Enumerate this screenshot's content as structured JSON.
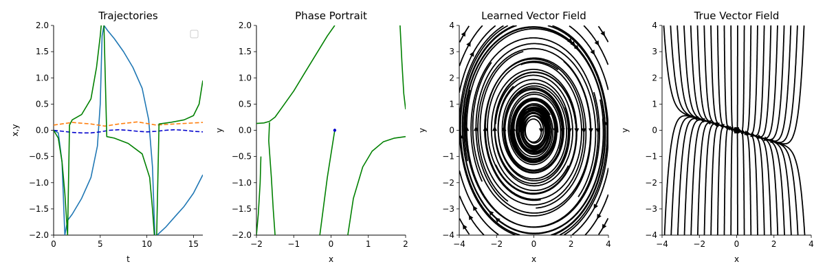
{
  "chart_data": [
    {
      "type": "line",
      "title": "Trajectories",
      "xlabel": "t",
      "ylabel": "x,y",
      "xlim": [
        0,
        16
      ],
      "ylim": [
        -2.0,
        2.0
      ],
      "xticks": [
        "0",
        "5",
        "10",
        "15"
      ],
      "yticks": [
        "−2.0",
        "−1.5",
        "−1.0",
        "−0.5",
        "0.0",
        "0.5",
        "1.0",
        "1.5",
        "2.0"
      ],
      "legend": "top-right (empty)",
      "series": [
        {
          "color": "#1f77b4",
          "style": "solid",
          "x": [
            0,
            0.5,
            0.9,
            1.2,
            1.5,
            2.0,
            3.0,
            4.0,
            4.7,
            5.0,
            5.2,
            5.4,
            5.8,
            6.5,
            7.5,
            8.5,
            9.5,
            10.2,
            10.6,
            10.85
          ],
          "y": [
            0.0,
            -0.05,
            -0.6,
            -2.0,
            -1.72,
            -1.6,
            -1.3,
            -0.9,
            -0.3,
            0.5,
            1.8,
            2.0,
            1.9,
            1.75,
            1.5,
            1.2,
            0.8,
            0.2,
            -0.7,
            -2.0
          ]
        },
        {
          "color": "#1f77b4",
          "style": "solid",
          "x": [
            11.1,
            12.0,
            13.0,
            14.0,
            15.0,
            16.0
          ],
          "y": [
            -2.0,
            -1.85,
            -1.65,
            -1.45,
            -1.2,
            -0.85
          ]
        },
        {
          "color": "#ff7f0e",
          "style": "dashed",
          "x": [
            0,
            2,
            4,
            5.5,
            7,
            9,
            11,
            13,
            16
          ],
          "y": [
            0.1,
            0.15,
            0.12,
            0.08,
            0.12,
            0.16,
            0.1,
            0.12,
            0.15
          ]
        },
        {
          "color": "#0000cc",
          "style": "dashed",
          "x": [
            0,
            1,
            2,
            3,
            4,
            5,
            6,
            7,
            8,
            9,
            10,
            11,
            12,
            13,
            14,
            15,
            16
          ],
          "y": [
            0.0,
            -0.02,
            -0.04,
            -0.05,
            -0.05,
            -0.03,
            0.0,
            0.01,
            0.0,
            -0.02,
            -0.03,
            -0.02,
            0.0,
            0.01,
            0.0,
            -0.02,
            -0.03
          ]
        },
        {
          "color": "#008000",
          "style": "solid",
          "x": [
            0,
            0.5,
            0.9,
            1.2,
            1.5,
            1.7,
            2.0,
            3.0,
            4.0,
            4.6,
            5.0,
            5.1
          ],
          "y": [
            0.0,
            -0.15,
            -0.6,
            -1.2,
            -2.0,
            0.1,
            0.2,
            0.3,
            0.6,
            1.2,
            1.8,
            2.0
          ]
        },
        {
          "color": "#008000",
          "style": "solid",
          "x": [
            5.4,
            5.7,
            6.5,
            8.0,
            9.5,
            10.3,
            10.6,
            10.8
          ],
          "y": [
            2.0,
            -0.12,
            -0.15,
            -0.25,
            -0.45,
            -0.9,
            -1.5,
            -2.0
          ]
        },
        {
          "color": "#008000",
          "style": "solid",
          "x": [
            11.05,
            11.3,
            12.5,
            14.0,
            15.0,
            15.6,
            16.0
          ],
          "y": [
            -2.0,
            0.12,
            0.15,
            0.2,
            0.28,
            0.5,
            0.95
          ]
        }
      ]
    },
    {
      "type": "line",
      "title": "Phase Portrait",
      "xlabel": "x",
      "ylabel": "y",
      "xlim": [
        -2,
        2
      ],
      "ylim": [
        -2.0,
        2.0
      ],
      "xticks": [
        "−2",
        "−1",
        "0",
        "1",
        "2"
      ],
      "yticks": [
        "−2.0",
        "−1.5",
        "−1.0",
        "−0.5",
        "0.0",
        "0.5",
        "1.0",
        "1.5",
        "2.0"
      ],
      "series": [
        {
          "color": "#008000",
          "style": "solid",
          "x": [
            -2.0,
            -1.8,
            -1.65,
            -1.5,
            -1.3,
            -1.0,
            -0.7,
            -0.4,
            -0.1,
            0.1
          ],
          "y": [
            0.13,
            0.14,
            0.17,
            0.25,
            0.45,
            0.75,
            1.1,
            1.45,
            1.8,
            2.0
          ]
        },
        {
          "color": "#008000",
          "style": "solid",
          "x": [
            -1.65,
            -1.67,
            -1.6,
            -1.55,
            -1.5
          ],
          "y": [
            0.15,
            -0.2,
            -0.9,
            -1.5,
            -2.0
          ]
        },
        {
          "color": "#008000",
          "style": "solid",
          "x": [
            -1.88,
            -1.9,
            -1.95,
            -2.0
          ],
          "y": [
            -0.5,
            -1.0,
            -1.6,
            -2.0
          ]
        },
        {
          "color": "#008000",
          "style": "solid",
          "x": [
            -0.3,
            -0.1,
            0.1
          ],
          "y": [
            -2.0,
            -0.9,
            0.0
          ]
        },
        {
          "color": "#008000",
          "style": "solid",
          "x": [
            0.45,
            0.6,
            0.85,
            1.1,
            1.4,
            1.7,
            2.0
          ],
          "y": [
            -2.0,
            -1.3,
            -0.7,
            -0.4,
            -0.22,
            -0.15,
            -0.12
          ]
        },
        {
          "color": "#008000",
          "style": "solid",
          "x": [
            1.85,
            1.9,
            1.95,
            2.0
          ],
          "y": [
            2.0,
            1.3,
            0.7,
            0.4
          ]
        },
        {
          "color": "#0000cc",
          "style": "solid",
          "x": [
            0.08,
            0.1,
            0.12,
            0.1,
            0.08
          ],
          "y": [
            0.0,
            0.02,
            0.0,
            -0.02,
            0.0
          ]
        }
      ]
    },
    {
      "type": "streamplot",
      "title": "Learned Vector Field",
      "xlabel": "x",
      "ylabel": "y",
      "xlim": [
        -4,
        4
      ],
      "ylim": [
        -4,
        4
      ],
      "xticks": [
        "−4",
        "−2",
        "0",
        "2",
        "4"
      ],
      "yticks": [
        "−4",
        "−3",
        "−2",
        "−1",
        "0",
        "1",
        "2",
        "3",
        "4"
      ],
      "field": "center-like circulation around origin, clockwise"
    },
    {
      "type": "streamplot",
      "title": "True Vector Field",
      "xlabel": "x",
      "ylabel": "y",
      "xlim": [
        -4,
        4
      ],
      "ylim": [
        -4,
        4
      ],
      "xticks": [
        "−4",
        "−2",
        "0",
        "2",
        "4"
      ],
      "yticks": [
        "−4",
        "−3",
        "−2",
        "−1",
        "0",
        "1",
        "2",
        "3",
        "4"
      ],
      "field": "mostly vertical flow, divergence near y=0"
    }
  ]
}
